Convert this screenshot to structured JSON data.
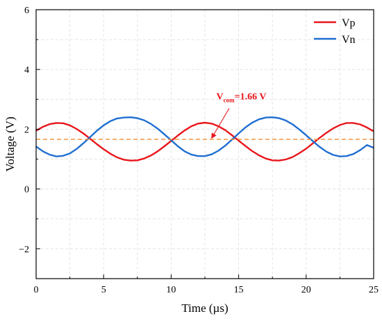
{
  "chart_data": {
    "type": "line",
    "xlabel": "Time (µs)",
    "ylabel": "Voltage (V)",
    "xlim": [
      0,
      25
    ],
    "ylim": [
      -3,
      6
    ],
    "x_ticks": [
      "0",
      "5",
      "10",
      "15",
      "20",
      "25"
    ],
    "y_ticks": [
      "−2",
      "0",
      "2",
      "4",
      "6"
    ],
    "grid": true,
    "legend_position": "top-right",
    "series": [
      {
        "name": "Vp",
        "color": "#e8161b",
        "x": [
          0,
          0.5,
          1,
          1.5,
          2,
          2.5,
          3,
          3.5,
          4,
          4.5,
          5,
          5.5,
          6,
          6.5,
          7,
          7.5,
          8,
          8.5,
          9,
          9.5,
          10,
          10.5,
          11,
          11.5,
          12,
          12.5,
          13,
          13.5,
          14,
          14.5,
          15,
          15.5,
          16,
          16.5,
          17,
          17.5,
          18,
          18.5,
          19,
          19.5,
          20,
          20.5,
          21,
          21.5,
          22,
          22.5,
          23,
          23.5,
          24,
          24.5,
          25
        ],
        "y": [
          1.95,
          2.08,
          2.17,
          2.21,
          2.2,
          2.13,
          2.01,
          1.86,
          1.68,
          1.5,
          1.33,
          1.18,
          1.06,
          0.98,
          0.95,
          0.96,
          1.02,
          1.12,
          1.26,
          1.43,
          1.61,
          1.79,
          1.96,
          2.1,
          2.19,
          2.22,
          2.19,
          2.1,
          1.97,
          1.8,
          1.62,
          1.44,
          1.27,
          1.13,
          1.02,
          0.96,
          0.95,
          0.99,
          1.07,
          1.2,
          1.35,
          1.53,
          1.71,
          1.88,
          2.03,
          2.14,
          2.21,
          2.21,
          2.16,
          2.06,
          1.93
        ]
      },
      {
        "name": "Vn",
        "color": "#1f6fd0",
        "x": [
          0,
          0.5,
          1,
          1.5,
          2,
          2.5,
          3,
          3.5,
          4,
          4.5,
          5,
          5.5,
          6,
          6.5,
          7,
          7.5,
          8,
          8.5,
          9,
          9.5,
          10,
          10.5,
          11,
          11.5,
          12,
          12.5,
          13,
          13.5,
          14,
          14.5,
          15,
          15.5,
          16,
          16.5,
          17,
          17.5,
          18,
          18.5,
          19,
          19.5,
          20,
          20.5,
          21,
          21.5,
          22,
          22.5,
          23,
          23.5,
          24,
          24.5,
          25
        ],
        "y": [
          1.42,
          1.26,
          1.15,
          1.09,
          1.11,
          1.19,
          1.34,
          1.53,
          1.74,
          1.95,
          2.13,
          2.27,
          2.36,
          2.39,
          2.4,
          2.37,
          2.3,
          2.18,
          2.02,
          1.83,
          1.63,
          1.43,
          1.26,
          1.15,
          1.1,
          1.1,
          1.16,
          1.28,
          1.45,
          1.65,
          1.86,
          2.06,
          2.22,
          2.33,
          2.39,
          2.4,
          2.37,
          2.29,
          2.16,
          1.99,
          1.8,
          1.6,
          1.41,
          1.25,
          1.14,
          1.09,
          1.1,
          1.17,
          1.3,
          1.47,
          1.38
        ]
      },
      {
        "name": "",
        "color": "#f08a2c",
        "dashed": true,
        "x": [
          0,
          25
        ],
        "y": [
          1.66,
          1.66
        ]
      }
    ],
    "annotation": {
      "main": "V",
      "sub": "com",
      "rest": "=1.66 V",
      "color": "#e8161b",
      "text_x": 15.2,
      "text_y": 3.0,
      "arrow_from": [
        14.3,
        2.7
      ],
      "arrow_to": [
        13.0,
        1.7
      ]
    }
  }
}
